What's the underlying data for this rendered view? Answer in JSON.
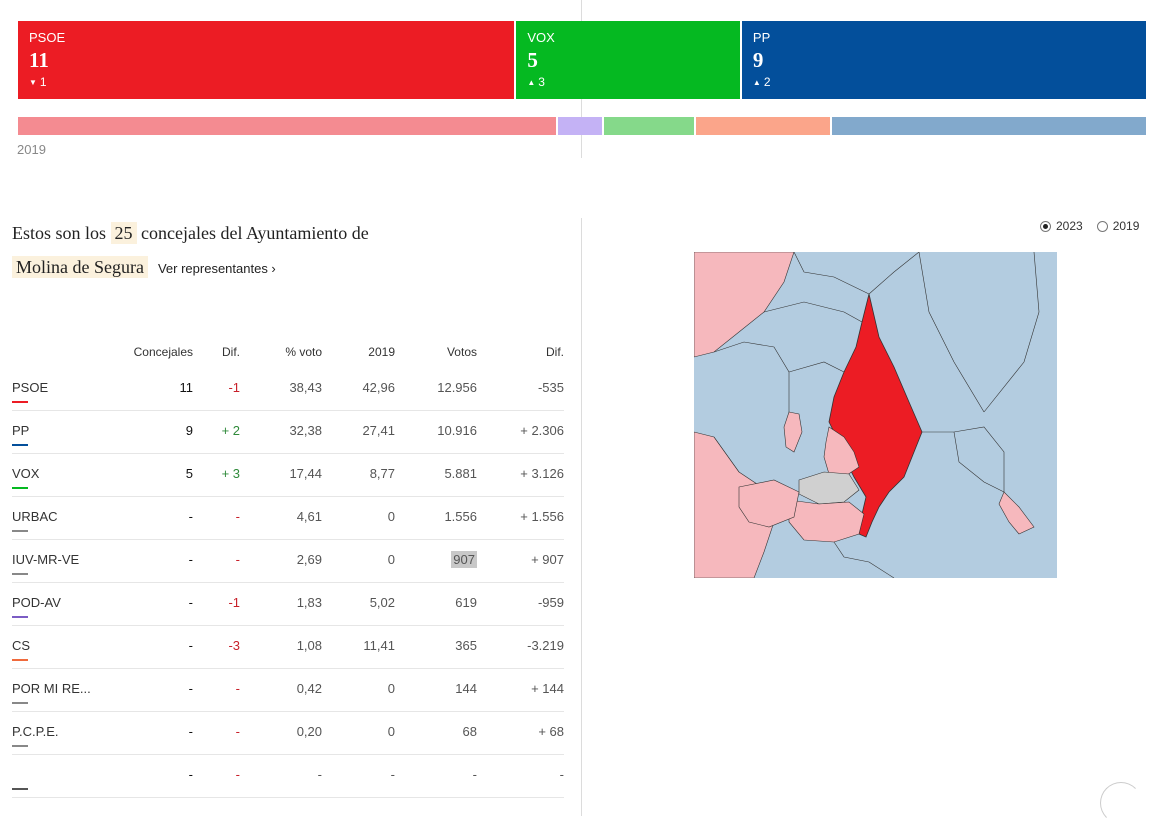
{
  "seats": [
    {
      "name": "PSOE",
      "value": "11",
      "diff": "1",
      "dir": "down",
      "color": "#ec1c24",
      "share": 11
    },
    {
      "name": "VOX",
      "value": "5",
      "diff": "3",
      "dir": "up",
      "color": "#05b921",
      "share": 5
    },
    {
      "name": "PP",
      "value": "9",
      "diff": "2",
      "dir": "up",
      "color": "#034f9b",
      "share": 9
    }
  ],
  "bar2019": {
    "label": "2019",
    "segments": [
      {
        "party": "PSOE",
        "color": "#f48b91",
        "share": 48
      },
      {
        "party": "POD-AV",
        "color": "#c4b2f5",
        "share": 4
      },
      {
        "party": "VOX",
        "color": "#85d98a",
        "share": 8
      },
      {
        "party": "CS",
        "color": "#fba58a",
        "share": 12
      },
      {
        "party": "PP",
        "color": "#82a9cc",
        "share": 28
      }
    ]
  },
  "intro": {
    "prefix": "Estos son los",
    "count": "25",
    "suffix": "concejales del Ayuntamiento de",
    "municipality": "Molina de Segura",
    "link": "Ver representantes ›"
  },
  "table": {
    "headers": [
      "",
      "Concejales",
      "Dif.",
      "% voto",
      "2019",
      "Votos",
      "Dif."
    ],
    "rows": [
      {
        "party": "PSOE",
        "seats": "11",
        "dif": "-1",
        "difClass": "neg",
        "pct": "38,43",
        "y2019": "42,96",
        "votes": "12.956",
        "vdif": "-535",
        "color": "#ec1c24"
      },
      {
        "party": "PP",
        "seats": "9",
        "dif": "+ 2",
        "difClass": "pos",
        "pct": "32,38",
        "y2019": "27,41",
        "votes": "10.916",
        "vdif": "+ 2.306",
        "color": "#034f9b"
      },
      {
        "party": "VOX",
        "seats": "5",
        "dif": "+ 3",
        "difClass": "pos",
        "pct": "17,44",
        "y2019": "8,77",
        "votes": "5.881",
        "vdif": "+ 3.126",
        "color": "#05b921"
      },
      {
        "party": "URBAC",
        "seats": "-",
        "dif": "-",
        "difClass": "neu",
        "pct": "4,61",
        "y2019": "0",
        "votes": "1.556",
        "vdif": "+ 1.556",
        "color": "#888888"
      },
      {
        "party": "IUV-MR-VE",
        "seats": "-",
        "dif": "-",
        "difClass": "neu",
        "pct": "2,69",
        "y2019": "0",
        "votes": "907",
        "vdif": "+ 907",
        "color": "#888888",
        "highlight": true
      },
      {
        "party": "POD-AV",
        "seats": "-",
        "dif": "-1",
        "difClass": "neg",
        "pct": "1,83",
        "y2019": "5,02",
        "votes": "619",
        "vdif": "-959",
        "color": "#7b5cc4"
      },
      {
        "party": "CS",
        "seats": "-",
        "dif": "-3",
        "difClass": "neg",
        "pct": "1,08",
        "y2019": "11,41",
        "votes": "365",
        "vdif": "-3.219",
        "color": "#f06a3c"
      },
      {
        "party": "POR MI RE...",
        "seats": "-",
        "dif": "-",
        "difClass": "neu",
        "pct": "0,42",
        "y2019": "0",
        "votes": "144",
        "vdif": "+ 144",
        "color": "#888888"
      },
      {
        "party": "P.C.P.E.",
        "seats": "-",
        "dif": "-",
        "difClass": "neu",
        "pct": "0,20",
        "y2019": "0",
        "votes": "68",
        "vdif": "+ 68",
        "color": "#888888"
      },
      {
        "party": "",
        "seats": "-",
        "dif": "-",
        "difClass": "neu",
        "pct": "-",
        "y2019": "-",
        "votes": "-",
        "vdif": "-",
        "color": "#555555"
      }
    ]
  },
  "years": [
    {
      "label": "2023",
      "selected": true
    },
    {
      "label": "2019",
      "selected": false
    }
  ],
  "map": {
    "colors": {
      "pp": "#b3cce0",
      "psoe_light": "#f6b8bd",
      "psoe": "#ec1c24",
      "tie": "#d0d0d0"
    }
  }
}
